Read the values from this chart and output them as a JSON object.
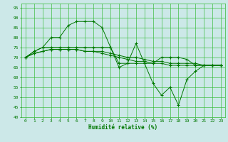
{
  "background_color": "#cce8e8",
  "grid_color": "#33bb33",
  "line_color": "#007700",
  "marker_color": "#007700",
  "xlabel": "Humidité relative (%)",
  "xlabel_color": "#007700",
  "tick_color": "#007700",
  "ylim": [
    40,
    97
  ],
  "xlim": [
    -0.5,
    23.5
  ],
  "yticks": [
    40,
    45,
    50,
    55,
    60,
    65,
    70,
    75,
    80,
    85,
    90,
    95
  ],
  "xticks": [
    0,
    1,
    2,
    3,
    4,
    5,
    6,
    7,
    8,
    9,
    10,
    11,
    12,
    13,
    14,
    15,
    16,
    17,
    18,
    19,
    20,
    21,
    22,
    23
  ],
  "series": [
    [
      70,
      73,
      75,
      80,
      80,
      86,
      88,
      88,
      88,
      85,
      75,
      65,
      67,
      77,
      67,
      57,
      51,
      55,
      46,
      59,
      63,
      66,
      66,
      66
    ],
    [
      70,
      73,
      75,
      75,
      75,
      75,
      75,
      75,
      75,
      75,
      75,
      67,
      67,
      67,
      67,
      67,
      70,
      70,
      70,
      69,
      66,
      66,
      66,
      66
    ],
    [
      70,
      72,
      73,
      74,
      74,
      74,
      74,
      73,
      73,
      73,
      72,
      71,
      70,
      70,
      69,
      68,
      68,
      67,
      67,
      67,
      67,
      66,
      66,
      66
    ],
    [
      70,
      72,
      73,
      74,
      74,
      74,
      74,
      73,
      73,
      72,
      71,
      70,
      69,
      68,
      68,
      67,
      67,
      66,
      66,
      66,
      66,
      66,
      66,
      66
    ]
  ]
}
